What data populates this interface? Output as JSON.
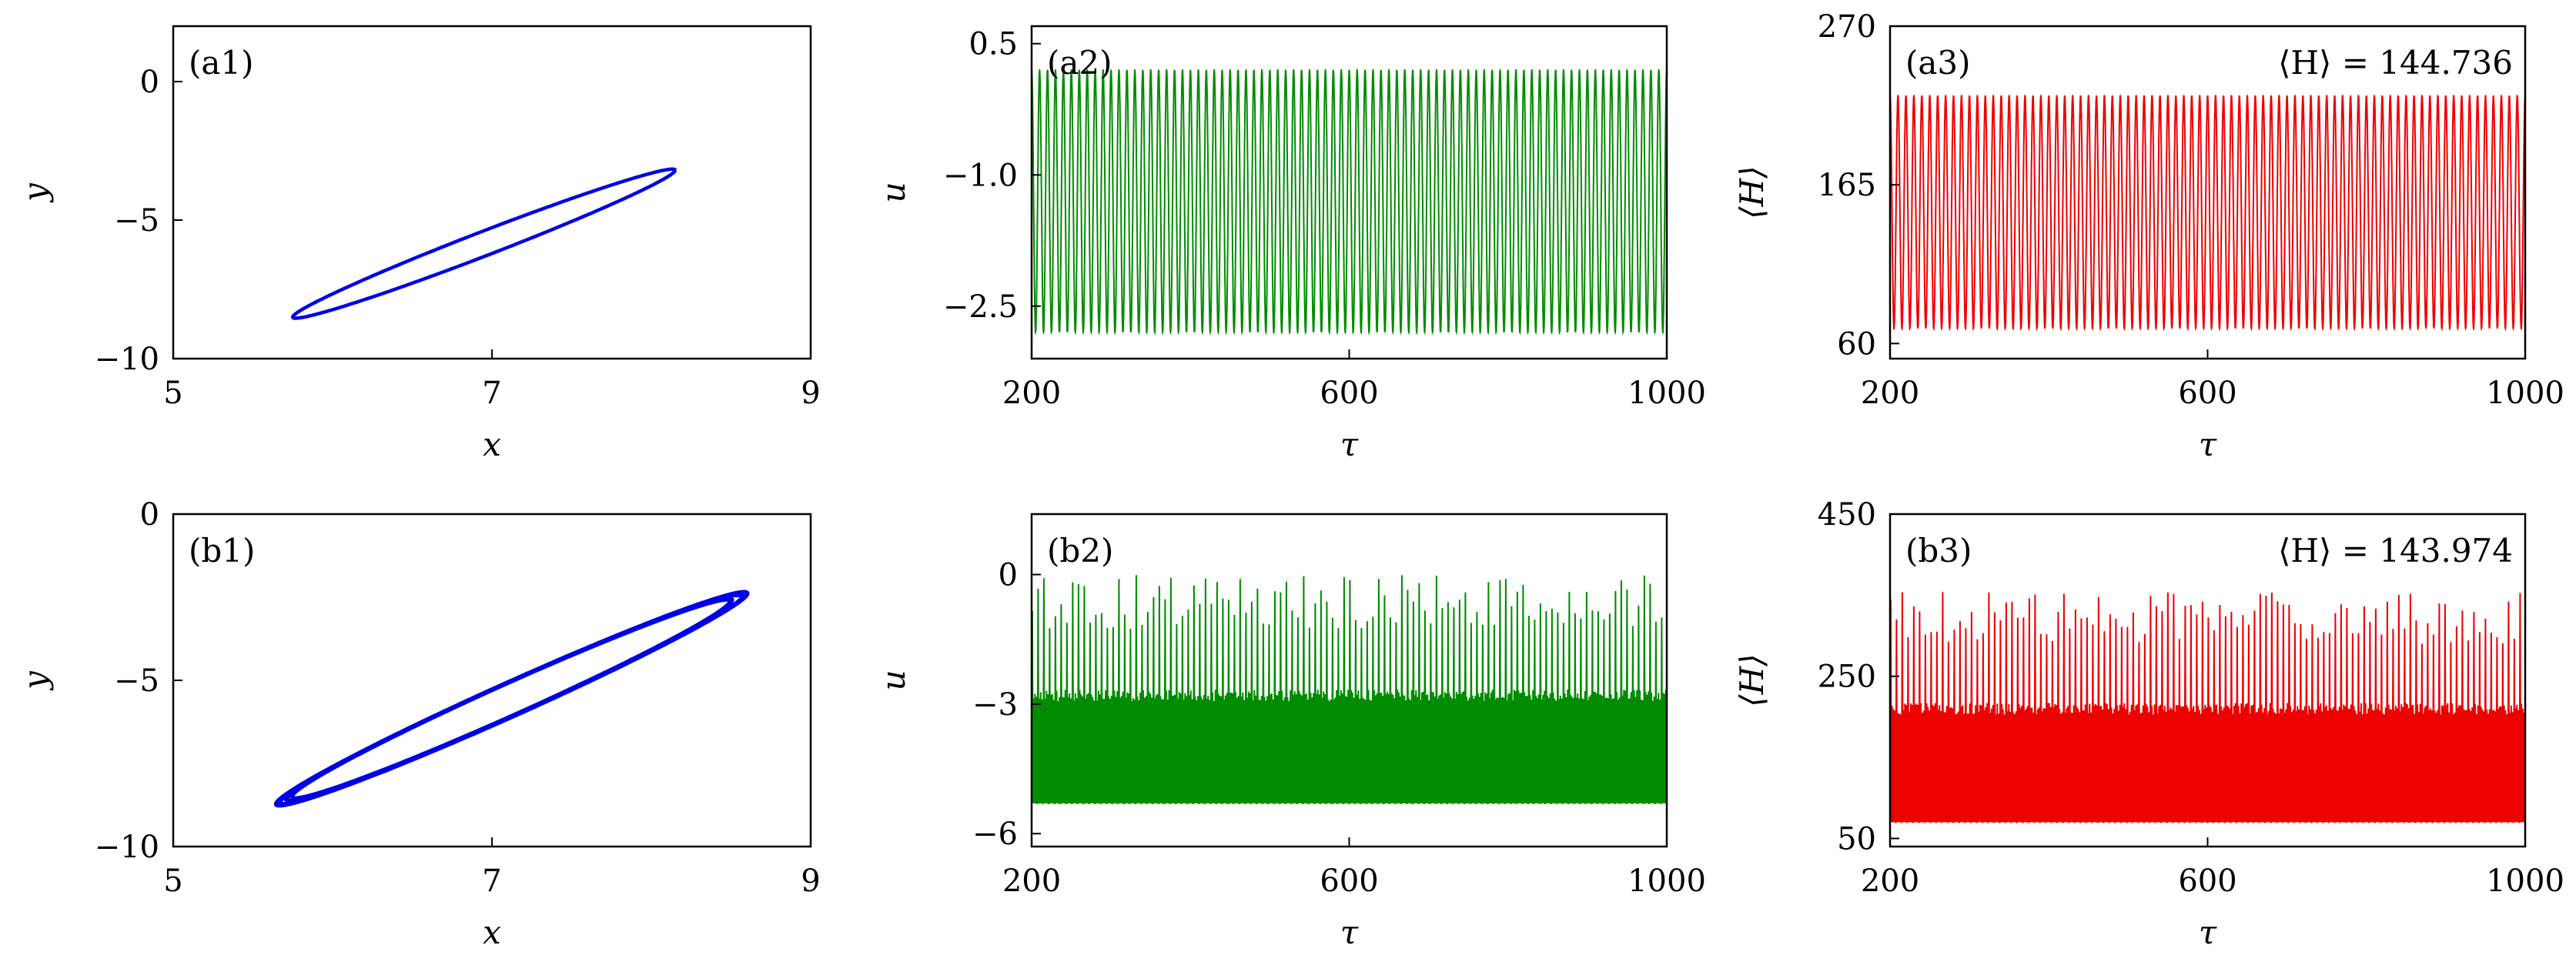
{
  "chart_data": [
    {
      "id": "a1",
      "type": "line",
      "panel_label": "(a1)",
      "xlabel": "x",
      "ylabel": "y",
      "xlim": [
        5,
        9
      ],
      "ylim": [
        -10,
        2
      ],
      "xticks": [
        "5",
        "7",
        "9"
      ],
      "yticks": [
        "0",
        "−5",
        "−10"
      ],
      "color": "#0000e6",
      "series": [
        {
          "kind": "limit-cycle",
          "x_range": [
            5.75,
            8.15
          ],
          "y_range": [
            -8.5,
            -3.2
          ],
          "cycles": 1
        }
      ]
    },
    {
      "id": "a2",
      "type": "line",
      "panel_label": "(a2)",
      "xlabel": "τ",
      "ylabel": "u",
      "xlim": [
        200,
        1000
      ],
      "ylim": [
        -3.1,
        0.7
      ],
      "xticks": [
        "200",
        "600",
        "1000"
      ],
      "yticks": [
        "0.5",
        "−1.0",
        "−2.5"
      ],
      "color": "#008c00",
      "series": [
        {
          "kind": "periodic",
          "min": -2.8,
          "max": 0.2,
          "oscillations": 80
        }
      ]
    },
    {
      "id": "a3",
      "type": "line",
      "panel_label": "(a3)",
      "xlabel": "τ",
      "ylabel": "⟨H⟩",
      "xlim": [
        200,
        1000
      ],
      "ylim": [
        50,
        270
      ],
      "xticks": [
        "200",
        "600",
        "1000"
      ],
      "yticks": [
        "270",
        "165",
        "60"
      ],
      "color": "#ee0000",
      "annotation": "⟨H⟩ = 144.736",
      "series": [
        {
          "kind": "periodic",
          "min": 70,
          "max": 224,
          "oscillations": 80
        }
      ]
    },
    {
      "id": "b1",
      "type": "line",
      "panel_label": "(b1)",
      "xlabel": "x",
      "ylabel": "y",
      "xlim": [
        5,
        9
      ],
      "ylim": [
        -10,
        0
      ],
      "xticks": [
        "5",
        "7",
        "9"
      ],
      "yticks": [
        "0",
        "−5",
        "−10"
      ],
      "color": "#0000e6",
      "series": [
        {
          "kind": "limit-cycle",
          "x_range": [
            5.7,
            8.55
          ],
          "y_range": [
            -8.6,
            -2.5
          ],
          "cycles": 5
        }
      ]
    },
    {
      "id": "b2",
      "type": "line",
      "panel_label": "(b2)",
      "xlabel": "τ",
      "ylabel": "u",
      "xlim": [
        200,
        1000
      ],
      "ylim": [
        -6.3,
        1.4
      ],
      "xticks": [
        "200",
        "600",
        "1000"
      ],
      "yticks": [
        "0",
        "−3",
        "−6"
      ],
      "color": "#008c00",
      "series": [
        {
          "kind": "bursting",
          "min": -5.3,
          "max": 0,
          "plateau": -2.8,
          "oscillations": 110
        }
      ]
    },
    {
      "id": "b3",
      "type": "line",
      "panel_label": "(b3)",
      "xlabel": "τ",
      "ylabel": "⟨H⟩",
      "xlim": [
        200,
        1000
      ],
      "ylim": [
        40,
        450
      ],
      "xticks": [
        "200",
        "600",
        "1000"
      ],
      "yticks": [
        "450",
        "250",
        "50"
      ],
      "color": "#ee0000",
      "annotation": "⟨H⟩ = 143.974",
      "series": [
        {
          "kind": "bursting",
          "min": 70,
          "max": 355,
          "plateau": 210,
          "oscillations": 110
        }
      ]
    }
  ]
}
